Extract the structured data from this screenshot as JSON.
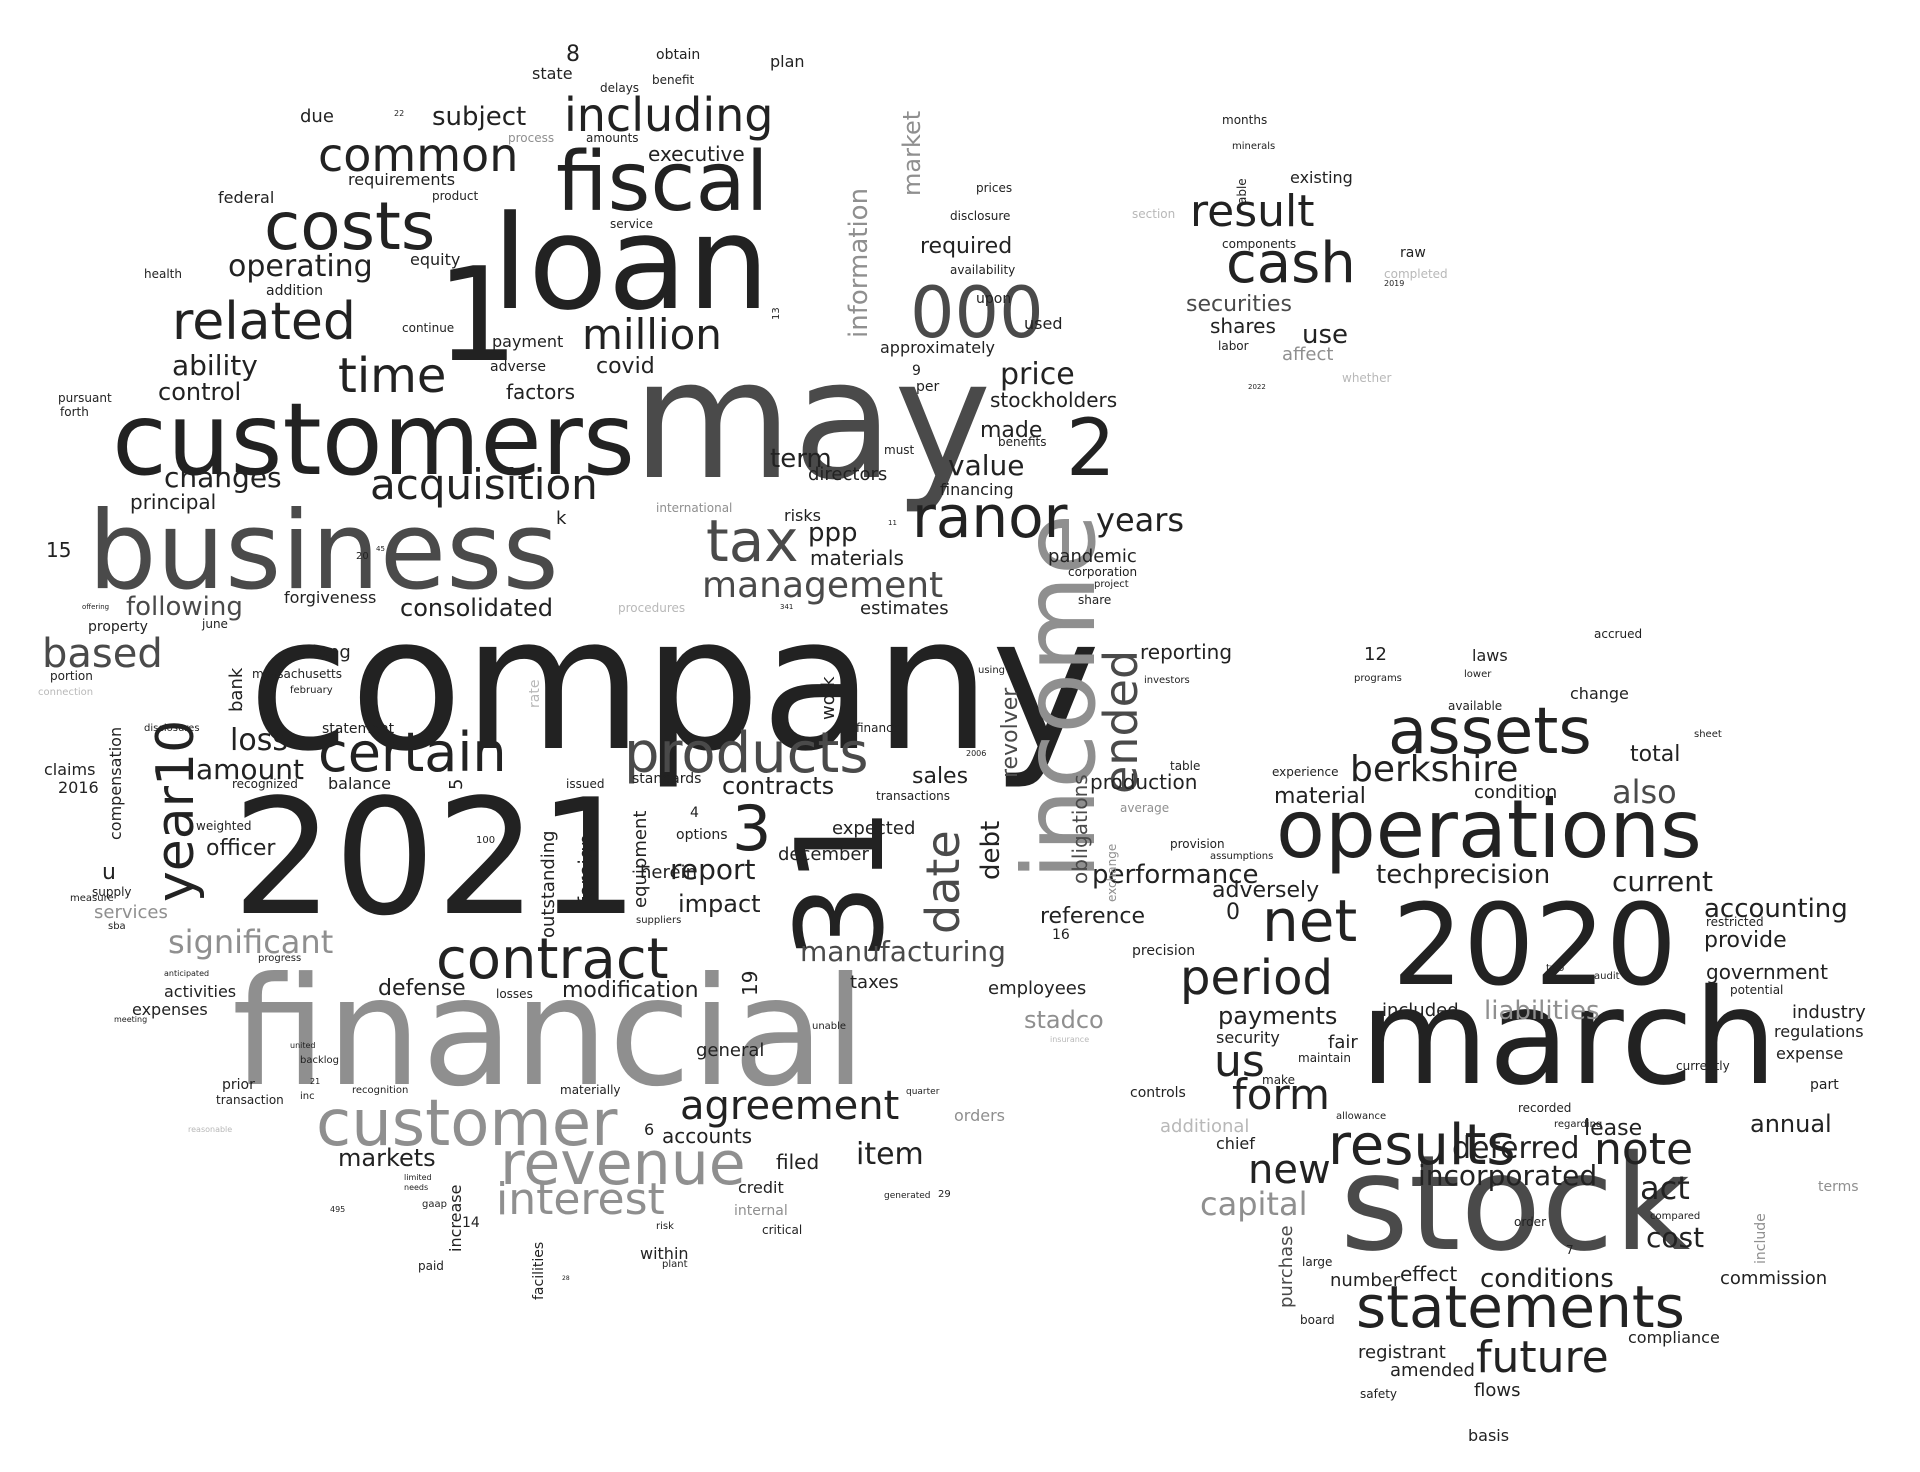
{
  "words": {
    "company": "company",
    "financial": "financial",
    "may": "may",
    "w2021": "2021",
    "loan": "loan",
    "customers": "customers",
    "business": "business",
    "w2020": "2020",
    "march": "march",
    "stock": "stock",
    "income": "income",
    "w31": "31",
    "operations": "operations",
    "fiscal": "fiscal",
    "costs": "costs",
    "customer": "customer",
    "revenue": "revenue",
    "contract": "contract",
    "products": "products",
    "assets": "assets",
    "statements": "statements",
    "results": "results",
    "w1": "1",
    "w000": "000",
    "w2": "2",
    "w3": "3",
    "related": "related",
    "certain": "certain",
    "acquisition": "acquisition",
    "million": "million",
    "including": "including",
    "common": "common",
    "time": "time",
    "tax": "tax",
    "ranor": "ranor",
    "net": "net",
    "period": "period",
    "future": "future",
    "note": "note",
    "cash": "cash",
    "result": "result",
    "interest": "interest",
    "agreement": "agreement",
    "management": "management",
    "berkshire": "berkshire",
    "year10": "year10",
    "date": "date",
    "ended": "ended",
    "us": "us",
    "form": "form",
    "new": "new",
    "based": "based",
    "significant": "significant",
    "capital": "capital",
    "manufacturing": "manufacturing",
    "item": "item",
    "deferred": "deferred",
    "incorporated": "incorporated",
    "conditions": "conditions",
    "also": "also",
    "current": "current",
    "accounting": "accounting",
    "stadco": "stadco",
    "changes": "changes",
    "operating": "operating",
    "ability": "ability",
    "following": "following",
    "consolidated": "consolidated",
    "loss": "loss",
    "amount": "amount",
    "officer": "officer",
    "report": "report",
    "impact": "impact",
    "price": "price",
    "value": "value",
    "years": "years",
    "act": "act",
    "cost": "cost",
    "techprecision": "techprecision",
    "performance": "performance",
    "reference": "reference",
    "markets": "markets",
    "defense": "defense",
    "modification": "modification",
    "contracts": "contracts",
    "sales": "sales",
    "liabilities": "liabilities",
    "payments": "payments",
    "annual": "annual",
    "lease": "lease",
    "filed": "filed",
    "accounts": "accounts",
    "executive": "executive",
    "subject": "subject",
    "control": "control",
    "principal": "principal",
    "covid": "covid",
    "factors": "factors",
    "term": "term",
    "ppp": "ppp",
    "materials": "materials",
    "pandemic": "pandemic",
    "directors": "directors",
    "made": "made",
    "stockholders": "stockholders",
    "securities": "securities",
    "shares": "shares",
    "use": "use",
    "affect": "affect",
    "existing": "existing",
    "required": "required",
    "information": "information",
    "market": "market",
    "debt": "debt",
    "revolver": "revolver",
    "obligations": "obligations",
    "production": "production",
    "reporting": "reporting",
    "total": "total",
    "condition": "condition",
    "material": "material",
    "adversely": "adversely",
    "provide": "provide",
    "government": "government",
    "industry": "industry",
    "regulations": "regulations",
    "expense": "expense",
    "commission": "commission",
    "compliance": "compliance",
    "registrant": "registrant",
    "amended": "amended",
    "flows": "flows",
    "basis": "basis",
    "number": "number",
    "effect": "effect",
    "purchase": "purchase",
    "included": "included",
    "fair": "fair",
    "security": "security",
    "chief": "chief",
    "additional": "additional",
    "controls": "controls",
    "taxes": "taxes",
    "employees": "employees",
    "orders": "orders",
    "general": "general",
    "credit": "credit",
    "within": "within",
    "facilities": "facilities",
    "outstanding": "outstanding",
    "foreign": "foreign",
    "equipment": "equipment",
    "herein": "herein",
    "expected": "expected",
    "december": "december",
    "estimates": "estimates",
    "work": "work",
    "options": "options",
    "standards": "standards",
    "balance": "balance",
    "statement": "statement",
    "long": "long",
    "bank": "bank",
    "compensation": "compensation",
    "claims": "claims",
    "w2016": "2016",
    "property": "property",
    "june": "june",
    "massachusetts": "massachusetts",
    "february": "february",
    "forgiveness": "forgiveness",
    "services": "services",
    "activities": "activities",
    "expenses": "expenses",
    "prior": "prior",
    "transaction": "transaction",
    "recognition": "recognition",
    "backlog": "backlog",
    "increase": "increase",
    "paid": "paid",
    "gaap": "gaap",
    "internal": "internal",
    "critical": "critical",
    "risk": "risk",
    "plant": "plant",
    "due": "due",
    "federal": "federal",
    "health": "health",
    "addition": "addition",
    "equity": "equity",
    "requirements": "requirements",
    "continue": "continue",
    "payment": "payment",
    "adverse": "adverse",
    "pursuant": "pursuant",
    "forth": "forth",
    "state": "state",
    "obtain": "obtain",
    "plan": "plan",
    "delays": "delays",
    "benefit": "benefit",
    "process": "process",
    "amounts": "amounts",
    "service": "service",
    "product": "product",
    "disclosure": "disclosure",
    "prices": "prices",
    "availability": "availability",
    "upon": "upon",
    "used": "used",
    "approximately": "approximately",
    "financing": "financing",
    "benefits": "benefits",
    "per": "per",
    "must": "must",
    "risks": "risks",
    "international": "international",
    "months": "months",
    "minerals": "minerals",
    "components": "components",
    "able": "able",
    "labor": "labor",
    "raw": "raw",
    "whether": "whether",
    "completed": "completed",
    "section": "section",
    "w8": "8",
    "w15": "15",
    "w12": "12",
    "w0": "0",
    "w5": "5",
    "w4": "4",
    "w6": "6",
    "w7": "7",
    "w9": "9",
    "w14": "14",
    "w16": "16",
    "w19": "19",
    "w100": "100",
    "w20": "20",
    "k": "k",
    "u": "u",
    "laws": "laws",
    "change": "change",
    "available": "available",
    "accrued": "accrued",
    "programs": "programs",
    "lower": "lower",
    "sheet": "sheet",
    "experience": "experience",
    "precision": "precision",
    "provision": "provision",
    "assumptions": "assumptions",
    "restricted": "restricted",
    "potential": "potential",
    "part": "part",
    "currently": "currently",
    "recorded": "recorded",
    "make": "make",
    "maintain": "maintain",
    "allowance": "allowance",
    "regarding": "regarding",
    "order": "order",
    "large": "large",
    "board": "board",
    "safety": "safety",
    "compared": "compared",
    "include": "include",
    "terms": "terms",
    "table": "table",
    "average": "average",
    "exchange": "exchange",
    "share": "share",
    "project": "project",
    "corporation": "corporation",
    "investors": "investors",
    "finance": "finance",
    "transactions": "transactions",
    "using": "using",
    "recognized": "recognized",
    "weighted": "weighted",
    "supply": "supply",
    "measure": "measure",
    "sba": "sba",
    "progress": "progress",
    "anticipated": "anticipated",
    "meeting": "meeting",
    "united": "united",
    "inc": "inc",
    "issued": "issued",
    "limited": "limited",
    "needs": "needs",
    "portion": "portion",
    "connection": "connection",
    "disclosures": "disclosures",
    "rate": "rate",
    "procedures": "procedures",
    "suppliers": "suppliers",
    "losses": "losses",
    "unable": "unable",
    "materially": "materially",
    "insurance": "insurance",
    "reasonable": "reasonable",
    "two": "two",
    "audit": "audit",
    "lease2": "lease",
    "offering": "offering",
    "generated": "generated",
    "w29": "29",
    "quarter": "quarter",
    "w495": "495",
    "w11": "11",
    "w22": "22",
    "w13": "13",
    "w2019": "2019",
    "w2022": "2022",
    "w2006": "2006",
    "w21": "21",
    "w341": "341",
    "w28": "28",
    "w3b": "3",
    "w45": "45"
  }
}
